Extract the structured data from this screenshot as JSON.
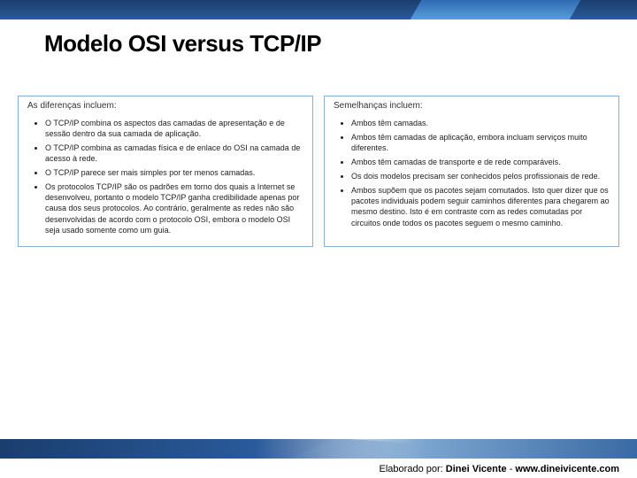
{
  "title": "Modelo OSI versus TCP/IP",
  "left": {
    "heading": "As diferenças incluem:",
    "items": [
      "O TCP/IP combina os aspectos das camadas de apresentação e de sessão dentro da sua camada de aplicação.",
      "O TCP/IP combina as camadas física e de enlace do OSI na camada de acesso à rede.",
      "O TCP/IP parece ser mais simples por ter menos camadas.",
      "Os protocolos TCP/IP são os padrões em torno dos quais a Internet se desenvolveu, portanto o modelo TCP/IP ganha credibilidade apenas por causa dos seus protocolos. Ao contrário, geralmente as redes não são desenvolvidas de acordo com o protocolo OSI, embora o modelo OSI seja usado somente como um guia."
    ]
  },
  "right": {
    "heading": "Semelhanças incluem:",
    "items": [
      "Ambos têm camadas.",
      "Ambos têm camadas de aplicação, embora incluam serviços muito diferentes.",
      "Ambos têm camadas de transporte e de rede comparáveis.",
      "Os dois modelos precisam ser conhecidos pelos profissionais de rede.",
      "Ambos supõem que os pacotes sejam comutados. Isto quer dizer que os pacotes individuais podem seguir caminhos diferentes para chegarem ao mesmo destino. Isto é em contraste com as redes comutadas por circuitos onde todos os pacotes seguem o mesmo caminho."
    ]
  },
  "footer": {
    "prefix": "Elaborado por: ",
    "author": "Dinei Vicente",
    "sep": " - ",
    "url": "www.dineivicente.com"
  },
  "colors": {
    "header_dark": "#1a3e6e",
    "header_mid": "#2a5a9a",
    "border": "#8ab0d6"
  }
}
